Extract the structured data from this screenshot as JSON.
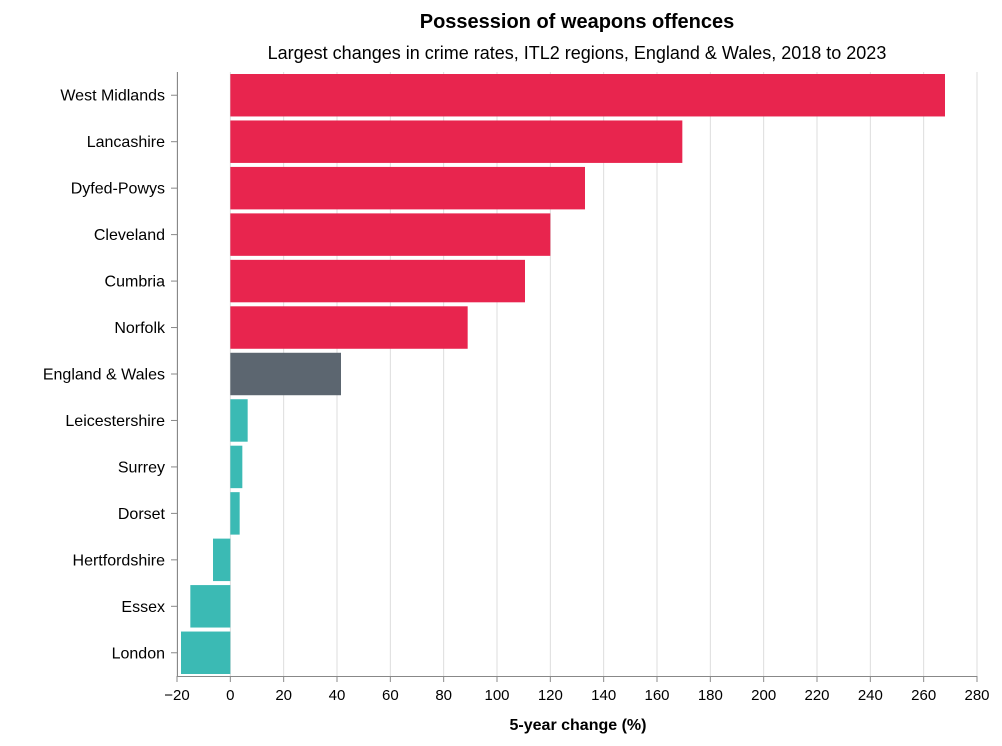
{
  "chart_data": {
    "type": "bar",
    "orientation": "horizontal",
    "title": "Possession of weapons offences",
    "subtitle": "Largest changes in crime rates, ITL2 regions, England & Wales, 2018 to 2023",
    "xlabel": "5-year change (%)",
    "ylabel": "",
    "xlim": [
      -20,
      280
    ],
    "xticks": [
      "−20",
      "0",
      "20",
      "40",
      "60",
      "80",
      "100",
      "120",
      "140",
      "160",
      "180",
      "200",
      "220",
      "240",
      "260",
      "280"
    ],
    "grid": true,
    "categories": [
      "West Midlands",
      "Lancashire",
      "Dyfed-Powys",
      "Cleveland",
      "Cumbria",
      "Norfolk",
      "England & Wales",
      "Leicestershire",
      "Surrey",
      "Dorset",
      "Hertfordshire",
      "Essex",
      "London"
    ],
    "values": [
      268,
      169.5,
      133,
      120,
      110.5,
      89,
      41.5,
      6.5,
      4.5,
      3.5,
      -6.5,
      -15,
      -18.5
    ],
    "colors": {
      "increase": "#e8254e",
      "average": "#5c6670",
      "decrease": "#3bbab4"
    },
    "bar_groups": [
      "increase",
      "increase",
      "increase",
      "increase",
      "increase",
      "increase",
      "average",
      "decrease",
      "decrease",
      "decrease",
      "decrease",
      "decrease",
      "decrease"
    ]
  }
}
